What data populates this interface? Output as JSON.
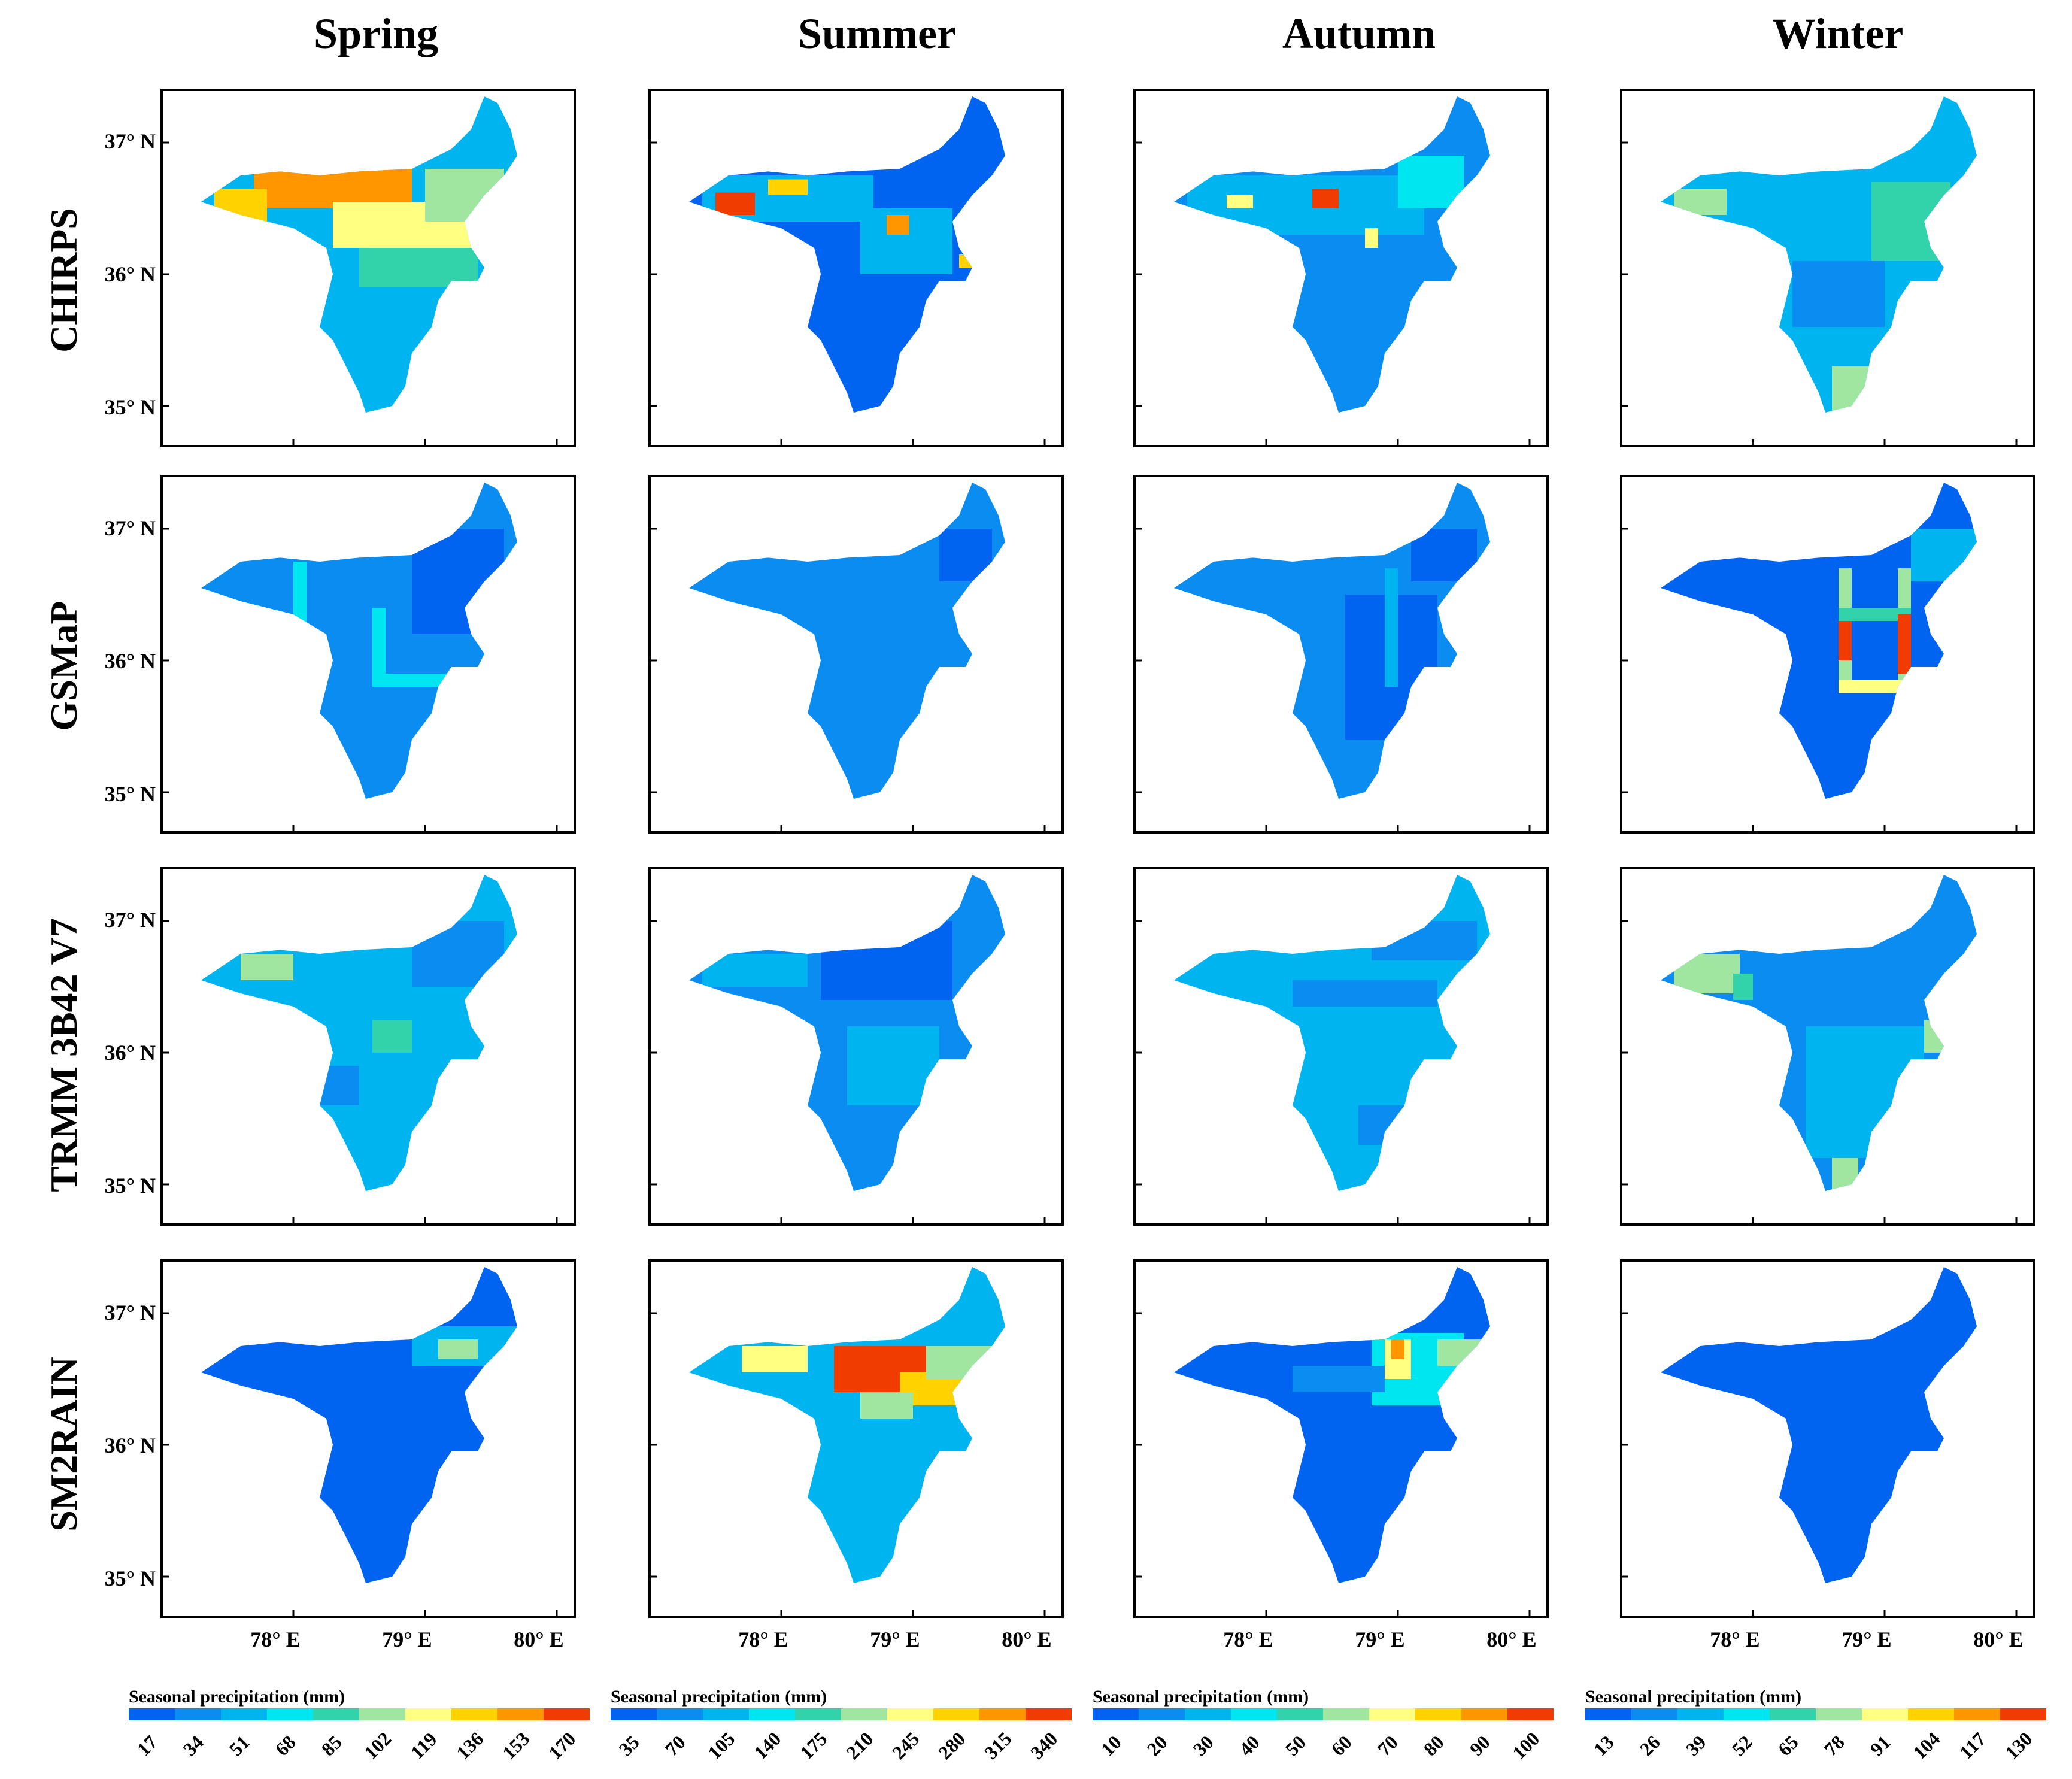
{
  "figure": {
    "seasons": [
      "Spring",
      "Summer",
      "Autumn",
      "Winter"
    ],
    "datasets": [
      "CHIRPS",
      "GSMaP",
      "TRMM 3B42 V7",
      "SM2RAIN"
    ],
    "lat_labels": [
      "37° N",
      "36° N",
      "35° N"
    ],
    "lon_labels": [
      "78° E",
      "79° E",
      "80° E"
    ]
  },
  "palette": [
    "#0064f0",
    "#0a8cf0",
    "#00b4f0",
    "#00e6f0",
    "#32d2aa",
    "#a0e6a0",
    "#ffff82",
    "#ffd200",
    "#ff9600",
    "#f03c00"
  ],
  "colorbars": [
    {
      "title": "Seasonal precipitation (mm)",
      "ticks": [
        "17",
        "34",
        "51",
        "68",
        "85",
        "102",
        "119",
        "136",
        "153",
        "170"
      ]
    },
    {
      "title": "Seasonal precipitation (mm)",
      "ticks": [
        "35",
        "70",
        "105",
        "140",
        "175",
        "210",
        "245",
        "280",
        "315",
        "340"
      ]
    },
    {
      "title": "Seasonal precipitation (mm)",
      "ticks": [
        "10",
        "20",
        "30",
        "40",
        "50",
        "60",
        "70",
        "80",
        "90",
        "100"
      ]
    },
    {
      "title": "Seasonal precipitation (mm)",
      "ticks": [
        "13",
        "26",
        "39",
        "52",
        "65",
        "78",
        "91",
        "104",
        "117",
        "130"
      ]
    }
  ],
  "panels": [
    [
      {
        "base": 2,
        "patches": [
          {
            "lon": [
              77.7,
              78.9
            ],
            "lat": [
              36.5,
              36.8
            ],
            "level": 8
          },
          {
            "lon": [
              77.4,
              77.8
            ],
            "lat": [
              36.4,
              36.65
            ],
            "level": 7
          },
          {
            "lon": [
              78.3,
              79.4
            ],
            "lat": [
              36.2,
              36.55
            ],
            "level": 6
          },
          {
            "lon": [
              79.0,
              79.6
            ],
            "lat": [
              36.4,
              36.8
            ],
            "level": 5
          },
          {
            "lon": [
              78.5,
              79.4
            ],
            "lat": [
              35.9,
              36.2
            ],
            "level": 4
          },
          {
            "lon": [
              79.2,
              79.9
            ],
            "lat": [
              36.8,
              37.3
            ],
            "level": 2
          }
        ]
      },
      {
        "base": 0,
        "patches": [
          {
            "lon": [
              77.4,
              78.7
            ],
            "lat": [
              36.4,
              36.75
            ],
            "level": 2
          },
          {
            "lon": [
              78.6,
              79.3
            ],
            "lat": [
              36.0,
              36.5
            ],
            "level": 2
          },
          {
            "lon": [
              77.5,
              77.8
            ],
            "lat": [
              36.45,
              36.62
            ],
            "level": 9
          },
          {
            "lon": [
              77.9,
              78.2
            ],
            "lat": [
              36.6,
              36.72
            ],
            "level": 7
          },
          {
            "lon": [
              78.8,
              78.97
            ],
            "lat": [
              36.3,
              36.45
            ],
            "level": 8
          },
          {
            "lon": [
              79.35,
              79.45
            ],
            "lat": [
              36.05,
              36.15
            ],
            "level": 7
          }
        ]
      },
      {
        "base": 1,
        "patches": [
          {
            "lon": [
              77.4,
              79.2
            ],
            "lat": [
              36.3,
              36.75
            ],
            "level": 2
          },
          {
            "lon": [
              78.35,
              78.55
            ],
            "lat": [
              36.5,
              36.65
            ],
            "level": 9
          },
          {
            "lon": [
              77.7,
              77.9
            ],
            "lat": [
              36.5,
              36.6
            ],
            "level": 6
          },
          {
            "lon": [
              78.75,
              78.85
            ],
            "lat": [
              36.2,
              36.35
            ],
            "level": 6
          },
          {
            "lon": [
              79.0,
              79.5
            ],
            "lat": [
              36.5,
              36.9
            ],
            "level": 3
          }
        ]
      },
      {
        "base": 2,
        "patches": [
          {
            "lon": [
              77.4,
              77.8
            ],
            "lat": [
              36.45,
              36.65
            ],
            "level": 5
          },
          {
            "lon": [
              78.9,
              79.5
            ],
            "lat": [
              36.1,
              36.7
            ],
            "level": 4
          },
          {
            "lon": [
              78.6,
              78.9
            ],
            "lat": [
              34.95,
              35.3
            ],
            "level": 5
          },
          {
            "lon": [
              78.3,
              79.0
            ],
            "lat": [
              35.6,
              36.1
            ],
            "level": 1
          }
        ]
      }
    ],
    [
      {
        "base": 1,
        "patches": [
          {
            "lon": [
              78.9,
              79.6
            ],
            "lat": [
              36.2,
              37.0
            ],
            "level": 0
          },
          {
            "lon": [
              78.0,
              78.1
            ],
            "lat": [
              35.8,
              36.75
            ],
            "level": 3
          },
          {
            "lon": [
              78.6,
              78.7
            ],
            "lat": [
              35.8,
              36.4
            ],
            "level": 3
          },
          {
            "lon": [
              78.6,
              79.3
            ],
            "lat": [
              35.8,
              35.9
            ],
            "level": 3
          }
        ]
      },
      {
        "base": 1,
        "patches": [
          {
            "lon": [
              79.2,
              79.6
            ],
            "lat": [
              36.6,
              37.0
            ],
            "level": 0
          }
        ]
      },
      {
        "base": 1,
        "patches": [
          {
            "lon": [
              78.6,
              79.3
            ],
            "lat": [
              35.4,
              36.5
            ],
            "level": 0
          },
          {
            "lon": [
              79.1,
              79.6
            ],
            "lat": [
              36.6,
              37.0
            ],
            "level": 0
          },
          {
            "lon": [
              78.9,
              79.0
            ],
            "lat": [
              35.8,
              36.7
            ],
            "level": 2
          }
        ]
      },
      {
        "base": 0,
        "patches": [
          {
            "lon": [
              78.65,
              78.75
            ],
            "lat": [
              35.75,
              36.7
            ],
            "level": 5
          },
          {
            "lon": [
              79.1,
              79.2
            ],
            "lat": [
              35.75,
              36.7
            ],
            "level": 5
          },
          {
            "lon": [
              78.65,
              79.2
            ],
            "lat": [
              35.75,
              35.85
            ],
            "level": 6
          },
          {
            "lon": [
              78.65,
              79.2
            ],
            "lat": [
              36.3,
              36.4
            ],
            "level": 4
          },
          {
            "lon": [
              78.65,
              78.75
            ],
            "lat": [
              36.0,
              36.3
            ],
            "level": 9
          },
          {
            "lon": [
              79.1,
              79.2
            ],
            "lat": [
              35.9,
              36.35
            ],
            "level": 9
          },
          {
            "lon": [
              79.2,
              79.7
            ],
            "lat": [
              36.6,
              37.0
            ],
            "level": 2
          }
        ]
      }
    ],
    [
      {
        "base": 2,
        "patches": [
          {
            "lon": [
              77.6,
              78.0
            ],
            "lat": [
              36.55,
              36.75
            ],
            "level": 5
          },
          {
            "lon": [
              78.9,
              79.6
            ],
            "lat": [
              36.5,
              37.0
            ],
            "level": 1
          },
          {
            "lon": [
              78.6,
              78.9
            ],
            "lat": [
              36.0,
              36.25
            ],
            "level": 4
          },
          {
            "lon": [
              78.2,
              78.5
            ],
            "lat": [
              35.6,
              35.9
            ],
            "level": 1
          }
        ]
      },
      {
        "base": 1,
        "patches": [
          {
            "lon": [
              78.3,
              79.3
            ],
            "lat": [
              36.4,
              37.0
            ],
            "level": 0
          },
          {
            "lon": [
              78.5,
              79.2
            ],
            "lat": [
              35.6,
              36.2
            ],
            "level": 2
          },
          {
            "lon": [
              77.4,
              78.2
            ],
            "lat": [
              36.5,
              36.75
            ],
            "level": 2
          }
        ]
      },
      {
        "base": 2,
        "patches": [
          {
            "lon": [
              78.2,
              79.3
            ],
            "lat": [
              36.35,
              36.55
            ],
            "level": 1
          },
          {
            "lon": [
              78.8,
              79.6
            ],
            "lat": [
              36.7,
              37.0
            ],
            "level": 1
          },
          {
            "lon": [
              78.7,
              79.2
            ],
            "lat": [
              35.3,
              35.6
            ],
            "level": 1
          }
        ]
      },
      {
        "base": 1,
        "patches": [
          {
            "lon": [
              77.4,
              77.9
            ],
            "lat": [
              36.45,
              36.75
            ],
            "level": 5
          },
          {
            "lon": [
              77.85,
              78.0
            ],
            "lat": [
              36.4,
              36.6
            ],
            "level": 4
          },
          {
            "lon": [
              78.4,
              79.3
            ],
            "lat": [
              35.2,
              36.2
            ],
            "level": 2
          },
          {
            "lon": [
              79.3,
              79.5
            ],
            "lat": [
              36.0,
              36.25
            ],
            "level": 5
          },
          {
            "lon": [
              78.6,
              78.8
            ],
            "lat": [
              34.95,
              35.2
            ],
            "level": 5
          }
        ]
      }
    ],
    [
      {
        "base": 0,
        "patches": [
          {
            "lon": [
              78.9,
              79.7
            ],
            "lat": [
              36.6,
              36.9
            ],
            "level": 2
          },
          {
            "lon": [
              79.1,
              79.4
            ],
            "lat": [
              36.65,
              36.8
            ],
            "level": 5
          }
        ]
      },
      {
        "base": 2,
        "patches": [
          {
            "lon": [
              78.4,
              79.2
            ],
            "lat": [
              36.4,
              36.75
            ],
            "level": 9
          },
          {
            "lon": [
              78.9,
              79.4
            ],
            "lat": [
              36.3,
              36.55
            ],
            "level": 7
          },
          {
            "lon": [
              77.7,
              78.2
            ],
            "lat": [
              36.55,
              36.75
            ],
            "level": 6
          },
          {
            "lon": [
              79.1,
              79.7
            ],
            "lat": [
              36.5,
              36.75
            ],
            "level": 5
          },
          {
            "lon": [
              78.6,
              79.0
            ],
            "lat": [
              36.2,
              36.4
            ],
            "level": 5
          }
        ]
      },
      {
        "base": 0,
        "patches": [
          {
            "lon": [
              78.8,
              79.5
            ],
            "lat": [
              36.3,
              36.85
            ],
            "level": 3
          },
          {
            "lon": [
              78.9,
              79.1
            ],
            "lat": [
              36.5,
              36.8
            ],
            "level": 6
          },
          {
            "lon": [
              78.95,
              79.05
            ],
            "lat": [
              36.65,
              36.8
            ],
            "level": 8
          },
          {
            "lon": [
              79.3,
              79.7
            ],
            "lat": [
              36.6,
              36.8
            ],
            "level": 5
          },
          {
            "lon": [
              78.2,
              78.9
            ],
            "lat": [
              36.4,
              36.6
            ],
            "level": 1
          }
        ]
      },
      {
        "base": 0,
        "patches": []
      }
    ]
  ]
}
